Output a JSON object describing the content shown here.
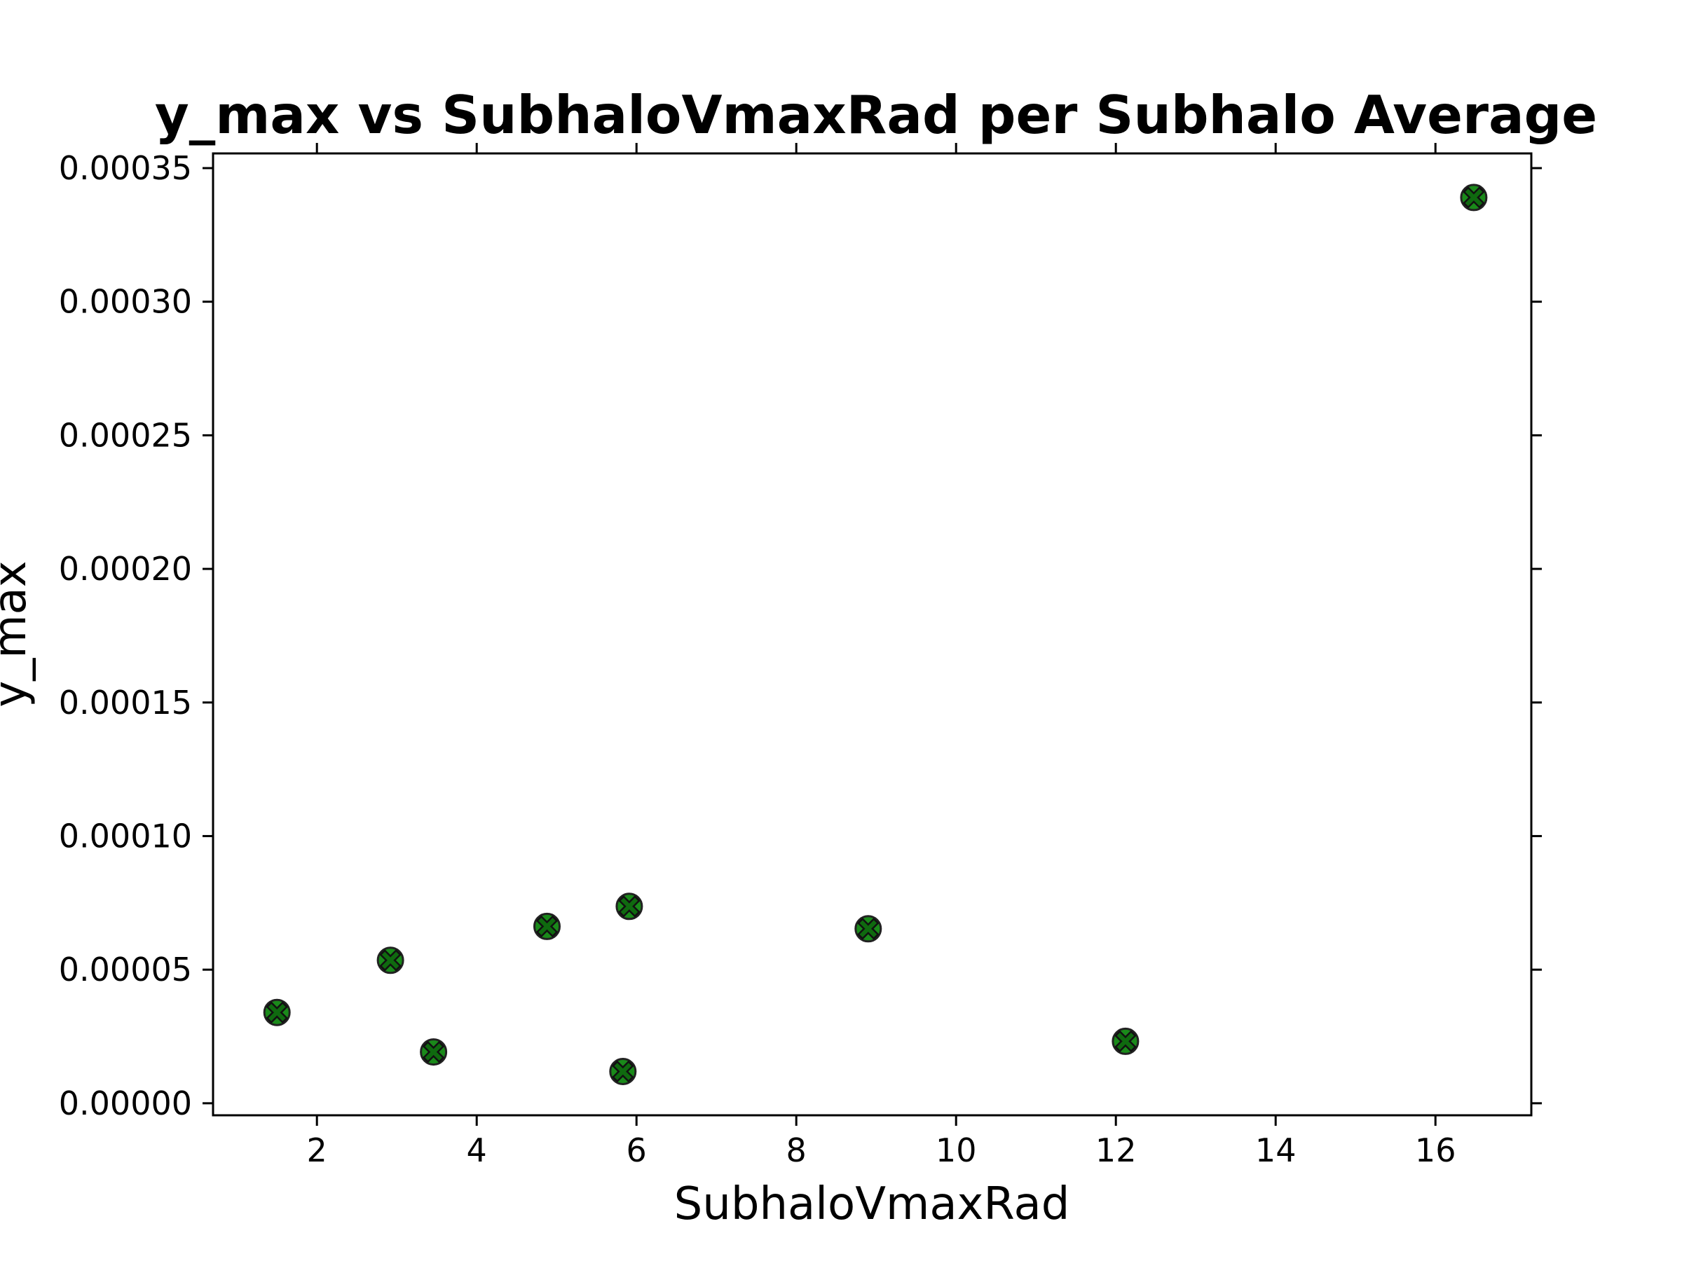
{
  "chart_data": {
    "type": "scatter",
    "title": "y_max vs SubhaloVmaxRad per Subhalo Average",
    "xlabel": "SubhaloVmaxRad",
    "ylabel": "y_max",
    "xlim": [
      0.7,
      17.2
    ],
    "ylim": [
      -4.5e-06,
      0.0003555
    ],
    "xticks": [
      2,
      4,
      6,
      8,
      10,
      12,
      14,
      16
    ],
    "xtick_labels": [
      "2",
      "4",
      "6",
      "8",
      "10",
      "12",
      "14",
      "16"
    ],
    "yticks": [
      0.0,
      5e-05,
      0.0001,
      0.00015,
      0.0002,
      0.00025,
      0.0003,
      0.00035
    ],
    "ytick_labels": [
      "0.00000",
      "0.00005",
      "0.00010",
      "0.00015",
      "0.00020",
      "0.00025",
      "0.00030",
      "0.00035"
    ],
    "grid": false,
    "marker": "x-filled",
    "marker_color": "#1a8a1a",
    "marker_edge_color": "#222222",
    "points": [
      {
        "x": 1.5,
        "y": 3.4e-05
      },
      {
        "x": 2.92,
        "y": 5.35e-05
      },
      {
        "x": 3.46,
        "y": 1.92e-05
      },
      {
        "x": 4.88,
        "y": 6.62e-05
      },
      {
        "x": 5.83,
        "y": 1.19e-05
      },
      {
        "x": 5.91,
        "y": 7.37e-05
      },
      {
        "x": 8.9,
        "y": 6.53e-05
      },
      {
        "x": 12.12,
        "y": 2.32e-05
      },
      {
        "x": 16.48,
        "y": 0.000339
      }
    ]
  }
}
